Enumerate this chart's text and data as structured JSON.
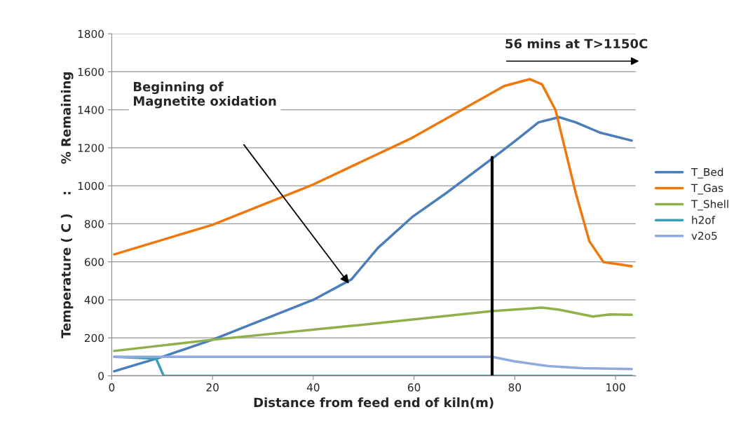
{
  "chart_data": {
    "type": "line",
    "xlabel": "Distance from feed end of kiln(m)",
    "ylabel": "Temperature ( C )    :      % Remaining",
    "xlim": [
      0,
      104
    ],
    "xticks": [
      0,
      20,
      40,
      60,
      80,
      100
    ],
    "ylim": [
      0,
      1800
    ],
    "yticks": [
      0,
      200,
      400,
      600,
      800,
      1000,
      1200,
      1400,
      1600,
      1800
    ],
    "grid": "y",
    "legend": "right",
    "series": [
      {
        "name": "T_Bed",
        "color": "#4a7ebb",
        "x": [
          0.5,
          10,
          20,
          40,
          47.6,
          52.8,
          59.6,
          66.4,
          75.5,
          80,
          84.7,
          88.8,
          92.1,
          96.9,
          103.2
        ],
        "values": [
          24,
          100,
          190,
          400,
          508,
          672,
          835,
          962,
          1143,
          1234,
          1334,
          1361,
          1334,
          1280,
          1238
        ]
      },
      {
        "name": "T_Gas",
        "color": "#f0780a",
        "x": [
          0.5,
          20,
          40,
          59.6,
          77.9,
          83,
          85.4,
          88.1,
          92.1,
          94.8,
          97.6,
          103.2
        ],
        "values": [
          639,
          795,
          1007,
          1252,
          1525,
          1561,
          1534,
          1398,
          962,
          708,
          599,
          577
        ]
      },
      {
        "name": "T_Shell",
        "color": "#8fb04a",
        "x": [
          0.5,
          20,
          47.6,
          75.5,
          85.4,
          88.8,
          95.5,
          98.9,
          103.2
        ],
        "values": [
          131,
          190,
          263,
          341,
          359,
          348,
          312,
          323,
          321
        ]
      },
      {
        "name": "h2of",
        "color": "#3aa0b5",
        "x": [
          0.5,
          8.8,
          10.3,
          103.2
        ],
        "values": [
          100,
          91,
          0,
          0
        ]
      },
      {
        "name": "v2o5",
        "color": "#8faadc",
        "x": [
          0.5,
          75.5,
          80,
          86.7,
          93.5,
          103.2
        ],
        "values": [
          100,
          100,
          76,
          51,
          40,
          36
        ]
      },
      {
        "color": "#000000",
        "x": [
          75.5,
          75.5
        ],
        "values": [
          0,
          1150
        ]
      }
    ],
    "annotations": [
      "Beginning of\nMagnetite oxidation",
      "56 mins at T>1150C"
    ]
  }
}
